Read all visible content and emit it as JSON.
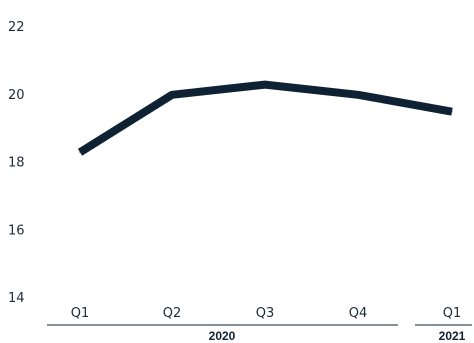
{
  "chart_data": {
    "type": "line",
    "categories": [
      "Q1",
      "Q2",
      "Q3",
      "Q4",
      "Q1"
    ],
    "groups": [
      {
        "label": "2020",
        "categories": [
          "Q1",
          "Q2",
          "Q3",
          "Q4"
        ]
      },
      {
        "label": "2021",
        "categories": [
          "Q1"
        ]
      }
    ],
    "series": [
      {
        "values": [
          18.3,
          20.0,
          20.3,
          20.0,
          19.5
        ],
        "color": "#0f2233"
      }
    ],
    "yticks": [
      14,
      16,
      18,
      20,
      22
    ],
    "ylim": [
      14,
      22
    ],
    "title": "",
    "xlabel": "",
    "ylabel": "",
    "grid": false,
    "legend": "none"
  }
}
